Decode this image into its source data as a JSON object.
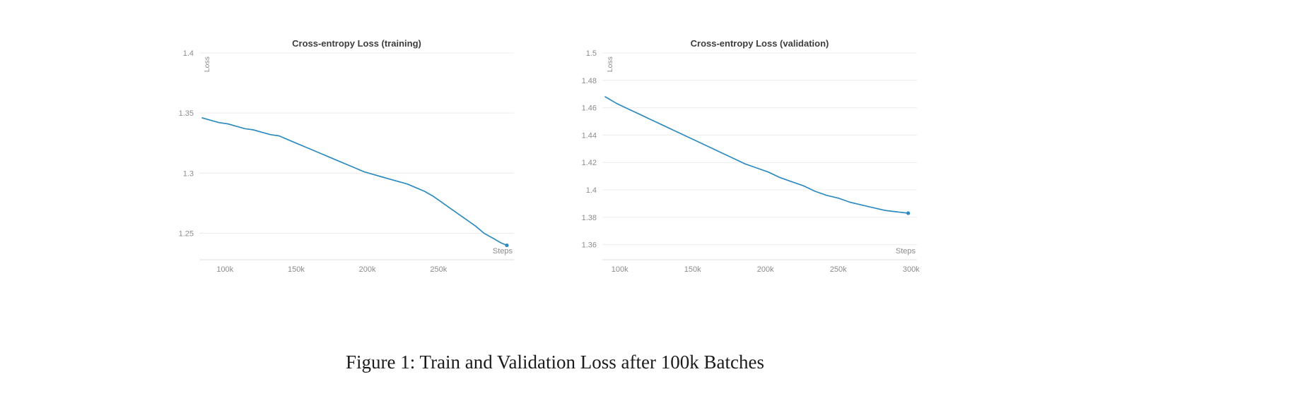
{
  "figure": {
    "caption": "Figure 1: Train and Validation Loss after 100k Batches"
  },
  "colors": {
    "line": "#2e8bc0",
    "grid": "#ececec",
    "axis": "#dcdcdc",
    "tick_text": "#8c8c8c",
    "title_text": "#3d3d3d"
  },
  "chart_data": [
    {
      "type": "line",
      "title": "Cross-entropy Loss (training)",
      "xlabel": "Steps",
      "ylabel": "Loss",
      "xlim": [
        82000,
        303000
      ],
      "ylim": [
        1.228,
        1.4
      ],
      "grid": "horizontal",
      "legend": "none",
      "end_marker": true,
      "x_ticks": [
        {
          "value": 100000,
          "label": "100k"
        },
        {
          "value": 150000,
          "label": "150k"
        },
        {
          "value": 200000,
          "label": "200k"
        },
        {
          "value": 250000,
          "label": "250k"
        }
      ],
      "y_ticks": [
        {
          "value": 1.25,
          "label": "1.25"
        },
        {
          "value": 1.3,
          "label": "1.3"
        },
        {
          "value": 1.35,
          "label": "1.35"
        },
        {
          "value": 1.4,
          "label": "1.4"
        }
      ],
      "series": [
        {
          "name": "training loss",
          "x": [
            84000,
            90000,
            96000,
            102000,
            108000,
            114000,
            120000,
            126000,
            132000,
            138000,
            144000,
            150000,
            156000,
            162000,
            168000,
            174000,
            180000,
            186000,
            192000,
            198000,
            204000,
            210000,
            216000,
            222000,
            228000,
            234000,
            240000,
            246000,
            252000,
            258000,
            264000,
            270000,
            276000,
            282000,
            288000,
            294000,
            298000
          ],
          "y": [
            1.346,
            1.344,
            1.342,
            1.341,
            1.339,
            1.337,
            1.336,
            1.334,
            1.332,
            1.331,
            1.328,
            1.325,
            1.322,
            1.319,
            1.316,
            1.313,
            1.31,
            1.307,
            1.304,
            1.301,
            1.299,
            1.297,
            1.295,
            1.293,
            1.291,
            1.288,
            1.285,
            1.281,
            1.276,
            1.271,
            1.266,
            1.261,
            1.256,
            1.25,
            1.246,
            1.242,
            1.24
          ]
        }
      ]
    },
    {
      "type": "line",
      "title": "Cross-entropy Loss (validation)",
      "xlabel": "Steps",
      "ylabel": "Loss",
      "xlim": [
        88000,
        304000
      ],
      "ylim": [
        1.349,
        1.5
      ],
      "grid": "horizontal",
      "legend": "none",
      "end_marker": true,
      "x_ticks": [
        {
          "value": 100000,
          "label": "100k"
        },
        {
          "value": 150000,
          "label": "150k"
        },
        {
          "value": 200000,
          "label": "200k"
        },
        {
          "value": 250000,
          "label": "250k"
        },
        {
          "value": 300000,
          "label": "300k"
        }
      ],
      "y_ticks": [
        {
          "value": 1.36,
          "label": "1.36"
        },
        {
          "value": 1.38,
          "label": "1.38"
        },
        {
          "value": 1.4,
          "label": "1.4"
        },
        {
          "value": 1.42,
          "label": "1.42"
        },
        {
          "value": 1.44,
          "label": "1.44"
        },
        {
          "value": 1.46,
          "label": "1.46"
        },
        {
          "value": 1.48,
          "label": "1.48"
        },
        {
          "value": 1.5,
          "label": "1.5"
        }
      ],
      "series": [
        {
          "name": "validation loss",
          "x": [
            90000,
            98000,
            106000,
            114000,
            122000,
            130000,
            138000,
            146000,
            154000,
            162000,
            170000,
            178000,
            186000,
            194000,
            202000,
            210000,
            218000,
            226000,
            234000,
            242000,
            250000,
            258000,
            266000,
            274000,
            282000,
            290000,
            298000
          ],
          "y": [
            1.468,
            1.463,
            1.459,
            1.455,
            1.451,
            1.447,
            1.443,
            1.439,
            1.435,
            1.431,
            1.427,
            1.423,
            1.419,
            1.416,
            1.413,
            1.409,
            1.406,
            1.403,
            1.399,
            1.396,
            1.394,
            1.391,
            1.389,
            1.387,
            1.385,
            1.384,
            1.383
          ]
        }
      ]
    }
  ]
}
